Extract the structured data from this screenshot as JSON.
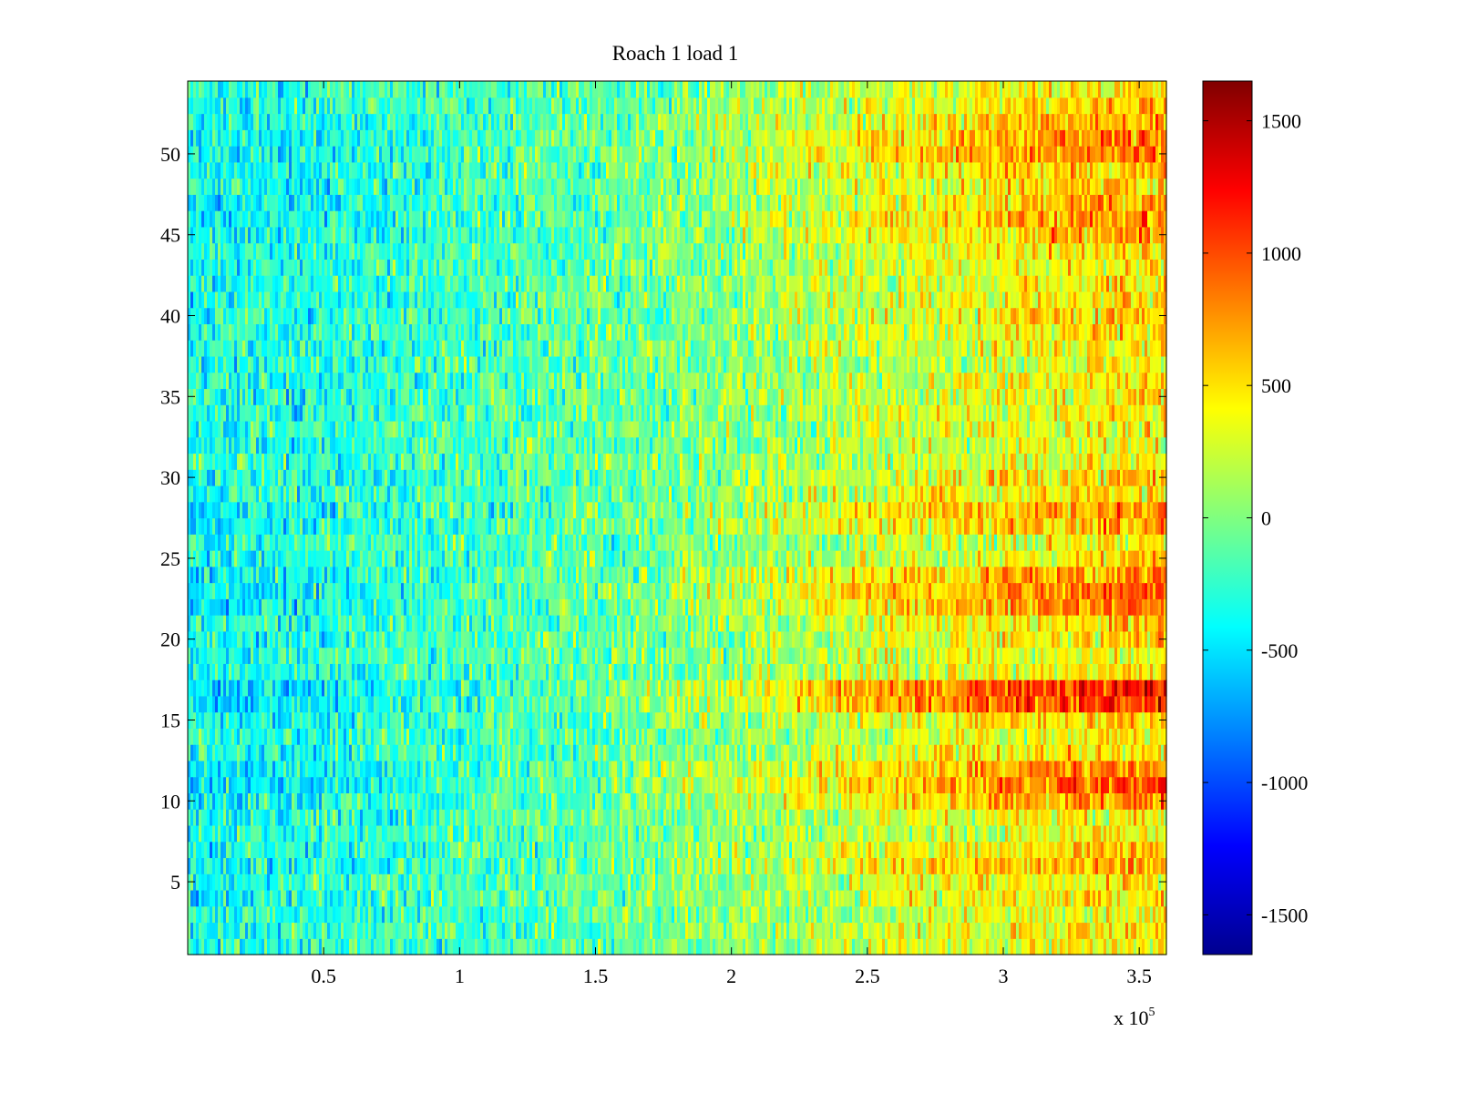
{
  "chart_data": {
    "type": "heatmap",
    "title": "Roach 1 load 1",
    "xlabel": "",
    "ylabel": "",
    "x_exponent_label": {
      "base": "x 10",
      "exponent": "5"
    },
    "xlim": [
      0,
      3.6
    ],
    "ylim": [
      0.5,
      54.5
    ],
    "x_ticks": [
      0.5,
      1,
      1.5,
      2,
      2.5,
      3,
      3.5
    ],
    "x_tick_labels": [
      "0.5",
      "1",
      "1.5",
      "2",
      "2.5",
      "3",
      "3.5"
    ],
    "y_ticks": [
      5,
      10,
      15,
      20,
      25,
      30,
      35,
      40,
      45,
      50
    ],
    "y_tick_labels": [
      "5",
      "10",
      "15",
      "20",
      "25",
      "30",
      "35",
      "40",
      "45",
      "50"
    ],
    "rows": 54,
    "colorbar": {
      "colormap": "jet",
      "clim": [
        -1650,
        1650
      ],
      "ticks": [
        -1500,
        -1000,
        -500,
        0,
        500,
        1000,
        1500
      ],
      "tick_labels": [
        "-1500",
        "-1000",
        "-500",
        "0",
        "500",
        "1000",
        "1500"
      ]
    },
    "trend_by_x": {
      "x": [
        0,
        0.5,
        1,
        1.5,
        2,
        2.5,
        3,
        3.6
      ],
      "mean_value": [
        -350,
        -300,
        -200,
        -100,
        50,
        250,
        400,
        520
      ]
    },
    "row_gain": [
      0.35,
      0.45,
      0.3,
      0.5,
      0.4,
      0.75,
      0.55,
      0.25,
      0.35,
      0.85,
      1.15,
      1.05,
      0.5,
      0.4,
      0.55,
      1.4,
      1.5,
      0.4,
      0.3,
      0.5,
      0.55,
      1.0,
      1.05,
      0.95,
      0.4,
      0.3,
      0.75,
      0.85,
      0.45,
      0.55,
      0.3,
      0.25,
      0.3,
      0.35,
      0.3,
      0.4,
      0.25,
      0.35,
      0.45,
      0.55,
      0.45,
      0.4,
      0.35,
      0.5,
      0.8,
      0.9,
      0.7,
      0.55,
      0.65,
      1.0,
      0.95,
      0.75,
      0.55,
      0.4
    ]
  }
}
